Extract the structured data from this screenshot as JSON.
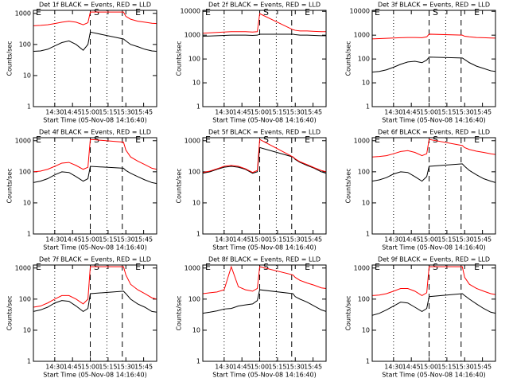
{
  "chart_data": [
    {
      "type": "line",
      "title": "Det 1f BLACK = Events, RED = LLD",
      "xlabel": "Start Time (05-Nov-08 14:16:40)",
      "ylabel": "Counts/sec",
      "x": [
        852,
        858,
        864,
        870,
        876,
        882,
        888,
        894,
        898,
        900,
        928,
        930,
        934,
        940,
        946,
        952,
        956
      ],
      "series": [
        {
          "color": "#000000",
          "values": [
            60,
            62,
            70,
            90,
            115,
            130,
            100,
            65,
            100,
            250,
            150,
            130,
            100,
            85,
            70,
            62,
            60
          ]
        },
        {
          "color": "#ff0000",
          "values": [
            400,
            410,
            430,
            470,
            520,
            560,
            520,
            430,
            500,
            1100,
            1100,
            800,
            650,
            560,
            520,
            480,
            470
          ]
        }
      ],
      "xlim": [
        852,
        956
      ],
      "xticks": [
        {
          "value": 870,
          "label": "14:30"
        },
        {
          "value": 885,
          "label": "14:45"
        },
        {
          "value": 900,
          "label": "15:00"
        },
        {
          "value": 915,
          "label": "15:15"
        },
        {
          "value": 930,
          "label": "15:30"
        },
        {
          "value": 945,
          "label": "15:45"
        }
      ],
      "ylim": [
        1,
        1250
      ],
      "yticks": [
        1,
        10,
        100,
        1000
      ],
      "ylog": true,
      "dotted_lines": [
        870,
        914
      ],
      "dashed_lines": [
        900,
        927
      ],
      "annotations": [
        {
          "text": "E",
          "x": 854
        },
        {
          "text": "S",
          "x": 903
        },
        {
          "text": "E",
          "x": 938
        }
      ]
    },
    {
      "type": "line",
      "title": "Det 2f BLACK = Events, RED = LLD",
      "xlabel": "Start Time (05-Nov-08 14:16:40)",
      "ylabel": "Counts/sec",
      "x": [
        852,
        858,
        864,
        870,
        876,
        882,
        888,
        894,
        898,
        900,
        928,
        930,
        934,
        940,
        946,
        952,
        956
      ],
      "series": [
        {
          "color": "#000000",
          "values": [
            900,
            920,
            950,
            980,
            1000,
            1000,
            1000,
            980,
            1000,
            1100,
            1100,
            1050,
            1000,
            1000,
            980,
            950,
            950
          ]
        },
        {
          "color": "#ff0000",
          "values": [
            1200,
            1250,
            1300,
            1350,
            1400,
            1400,
            1400,
            1350,
            1400,
            8000,
            1700,
            1600,
            1500,
            1500,
            1450,
            1400,
            1400
          ]
        }
      ],
      "xlim": [
        852,
        956
      ],
      "xticks": [
        {
          "value": 870,
          "label": "14:30"
        },
        {
          "value": 885,
          "label": "14:45"
        },
        {
          "value": 900,
          "label": "15:00"
        },
        {
          "value": 915,
          "label": "15:15"
        },
        {
          "value": 930,
          "label": "15:30"
        },
        {
          "value": 945,
          "label": "15:45"
        }
      ],
      "ylim": [
        1,
        11000
      ],
      "yticks": [
        1,
        10,
        100,
        1000,
        10000
      ],
      "ylog": true,
      "dotted_lines": [
        870,
        914
      ],
      "dashed_lines": [
        900,
        927
      ],
      "annotations": [
        {
          "text": "E",
          "x": 854
        },
        {
          "text": "S",
          "x": 903
        },
        {
          "text": "E",
          "x": 938
        }
      ]
    },
    {
      "type": "line",
      "title": "Det 3f BLACK = Events, RED = LLD",
      "xlabel": "Start Time (05-Nov-08 14:16:40)",
      "ylabel": "Counts/sec",
      "x": [
        852,
        858,
        864,
        870,
        876,
        882,
        888,
        894,
        898,
        900,
        928,
        930,
        934,
        940,
        946,
        952,
        956
      ],
      "series": [
        {
          "color": "#000000",
          "values": [
            28,
            30,
            35,
            45,
            60,
            75,
            80,
            70,
            90,
            120,
            110,
            95,
            70,
            50,
            40,
            32,
            30
          ]
        },
        {
          "color": "#ff0000",
          "values": [
            700,
            720,
            740,
            760,
            780,
            800,
            800,
            780,
            850,
            1100,
            1000,
            900,
            850,
            800,
            780,
            760,
            750
          ]
        }
      ],
      "xlim": [
        852,
        956
      ],
      "xticks": [
        {
          "value": 870,
          "label": "14:30"
        },
        {
          "value": 885,
          "label": "14:45"
        },
        {
          "value": 900,
          "label": "15:00"
        },
        {
          "value": 915,
          "label": "15:15"
        },
        {
          "value": 930,
          "label": "15:30"
        },
        {
          "value": 945,
          "label": "15:45"
        }
      ],
      "ylim": [
        1,
        11000
      ],
      "yticks": [
        1,
        10,
        100,
        1000,
        10000
      ],
      "ylog": true,
      "dotted_lines": [
        870,
        914
      ],
      "dashed_lines": [
        900,
        927
      ],
      "annotations": [
        {
          "text": "E",
          "x": 854
        },
        {
          "text": "S",
          "x": 903
        },
        {
          "text": "E",
          "x": 938
        }
      ]
    },
    {
      "type": "line",
      "title": "Det 4f BLACK = Events, RED = LLD",
      "xlabel": "Start Time (05-Nov-08 14:16:40)",
      "ylabel": "Counts/sec",
      "x": [
        852,
        858,
        864,
        870,
        876,
        882,
        888,
        894,
        898,
        900,
        928,
        930,
        934,
        940,
        946,
        952,
        956
      ],
      "series": [
        {
          "color": "#000000",
          "values": [
            45,
            50,
            60,
            80,
            100,
            95,
            70,
            50,
            60,
            150,
            130,
            110,
            90,
            70,
            55,
            45,
            42
          ]
        },
        {
          "color": "#ff0000",
          "values": [
            100,
            105,
            120,
            150,
            190,
            200,
            160,
            120,
            140,
            1100,
            900,
            500,
            300,
            220,
            170,
            130,
            120
          ]
        }
      ],
      "xlim": [
        852,
        956
      ],
      "xticks": [
        {
          "value": 870,
          "label": "14:30"
        },
        {
          "value": 885,
          "label": "14:45"
        },
        {
          "value": 900,
          "label": "15:00"
        },
        {
          "value": 915,
          "label": "15:15"
        },
        {
          "value": 930,
          "label": "15:30"
        },
        {
          "value": 945,
          "label": "15:45"
        }
      ],
      "ylim": [
        1,
        1250
      ],
      "yticks": [
        1,
        10,
        100,
        1000
      ],
      "ylog": true,
      "dotted_lines": [
        870,
        914
      ],
      "dashed_lines": [
        900,
        927
      ],
      "annotations": [
        {
          "text": "E",
          "x": 854
        },
        {
          "text": "S",
          "x": 903
        },
        {
          "text": "E",
          "x": 938
        }
      ]
    },
    {
      "type": "line",
      "title": "Det 5f BLACK = Events, RED = LLD",
      "xlabel": "Start Time (05-Nov-08 14:16:40)",
      "ylabel": "Counts/sec",
      "x": [
        852,
        858,
        864,
        870,
        876,
        882,
        888,
        894,
        898,
        900,
        928,
        930,
        934,
        940,
        946,
        952,
        956
      ],
      "series": [
        {
          "color": "#000000",
          "values": [
            90,
            100,
            120,
            140,
            150,
            140,
            120,
            90,
            100,
            600,
            300,
            250,
            200,
            160,
            130,
            100,
            90
          ]
        },
        {
          "color": "#ff0000",
          "values": [
            95,
            105,
            125,
            150,
            160,
            150,
            125,
            95,
            110,
            1100,
            300,
            260,
            210,
            170,
            135,
            110,
            100
          ]
        }
      ],
      "xlim": [
        852,
        956
      ],
      "xticks": [
        {
          "value": 870,
          "label": "14:30"
        },
        {
          "value": 885,
          "label": "14:45"
        },
        {
          "value": 900,
          "label": "15:00"
        },
        {
          "value": 915,
          "label": "15:15"
        },
        {
          "value": 930,
          "label": "15:30"
        },
        {
          "value": 945,
          "label": "15:45"
        }
      ],
      "ylim": [
        1,
        1250
      ],
      "yticks": [
        1,
        10,
        100,
        1000
      ],
      "ylog": true,
      "dotted_lines": [
        870,
        914
      ],
      "dashed_lines": [
        900,
        927
      ],
      "annotations": [
        {
          "text": "E",
          "x": 854
        },
        {
          "text": "S",
          "x": 903
        },
        {
          "text": "E",
          "x": 938
        }
      ]
    },
    {
      "type": "line",
      "title": "Det 6f BLACK = Events, RED = LLD",
      "xlabel": "Start Time (05-Nov-08 14:16:40)",
      "ylabel": "Counts/sec",
      "x": [
        852,
        858,
        864,
        870,
        876,
        882,
        888,
        894,
        898,
        900,
        928,
        930,
        934,
        940,
        946,
        952,
        956
      ],
      "series": [
        {
          "color": "#000000",
          "values": [
            50,
            55,
            65,
            85,
            100,
            95,
            70,
            50,
            70,
            150,
            180,
            150,
            110,
            80,
            60,
            50,
            45
          ]
        },
        {
          "color": "#ff0000",
          "values": [
            300,
            310,
            330,
            380,
            450,
            480,
            420,
            330,
            380,
            1100,
            700,
            600,
            520,
            460,
            420,
            380,
            360
          ]
        }
      ],
      "xlim": [
        852,
        956
      ],
      "xticks": [
        {
          "value": 870,
          "label": "14:30"
        },
        {
          "value": 885,
          "label": "14:45"
        },
        {
          "value": 900,
          "label": "15:00"
        },
        {
          "value": 915,
          "label": "15:15"
        },
        {
          "value": 930,
          "label": "15:30"
        },
        {
          "value": 945,
          "label": "15:45"
        }
      ],
      "ylim": [
        1,
        1250
      ],
      "yticks": [
        1,
        10,
        100,
        1000
      ],
      "ylog": true,
      "dotted_lines": [
        870,
        914
      ],
      "dashed_lines": [
        900,
        927
      ],
      "annotations": [
        {
          "text": "E",
          "x": 854
        },
        {
          "text": "S",
          "x": 903
        },
        {
          "text": "E",
          "x": 938
        }
      ]
    },
    {
      "type": "line",
      "title": "Det 7f BLACK = Events, RED = LLD",
      "xlabel": "Start Time (05-Nov-08 14:16:40)",
      "ylabel": "Counts/sec",
      "x": [
        852,
        858,
        864,
        870,
        876,
        882,
        888,
        894,
        898,
        900,
        928,
        930,
        934,
        940,
        946,
        952,
        956
      ],
      "series": [
        {
          "color": "#000000",
          "values": [
            40,
            45,
            55,
            75,
            90,
            85,
            60,
            40,
            50,
            150,
            180,
            150,
            100,
            70,
            55,
            40,
            38
          ]
        },
        {
          "color": "#ff0000",
          "values": [
            55,
            60,
            75,
            100,
            130,
            130,
            100,
            70,
            100,
            1100,
            1100,
            600,
            300,
            200,
            150,
            110,
            100
          ]
        }
      ],
      "xlim": [
        852,
        956
      ],
      "xticks": [
        {
          "value": 870,
          "label": "14:30"
        },
        {
          "value": 885,
          "label": "14:45"
        },
        {
          "value": 900,
          "label": "15:00"
        },
        {
          "value": 915,
          "label": "15:15"
        },
        {
          "value": 930,
          "label": "15:30"
        },
        {
          "value": 945,
          "label": "15:45"
        }
      ],
      "ylim": [
        1,
        1250
      ],
      "yticks": [
        1,
        10,
        100,
        1000
      ],
      "ylog": true,
      "dotted_lines": [
        870,
        914
      ],
      "dashed_lines": [
        900,
        927
      ],
      "annotations": [
        {
          "text": "E",
          "x": 854
        },
        {
          "text": "S",
          "x": 903
        },
        {
          "text": "E",
          "x": 938
        }
      ]
    },
    {
      "type": "line",
      "title": "Det 8f BLACK = Events, RED = LLD",
      "xlabel": "Start Time (05-Nov-08 14:16:40)",
      "ylabel": "Counts/sec",
      "x": [
        852,
        858,
        864,
        870,
        876,
        882,
        888,
        894,
        898,
        900,
        928,
        930,
        934,
        940,
        946,
        952,
        956
      ],
      "series": [
        {
          "color": "#000000",
          "values": [
            35,
            38,
            42,
            48,
            50,
            60,
            65,
            70,
            90,
            200,
            150,
            120,
            100,
            80,
            60,
            45,
            40
          ]
        },
        {
          "color": "#ff0000",
          "values": [
            150,
            160,
            170,
            200,
            1100,
            250,
            200,
            180,
            220,
            1100,
            600,
            500,
            400,
            330,
            280,
            230,
            220
          ]
        }
      ],
      "xlim": [
        852,
        956
      ],
      "xticks": [
        {
          "value": 870,
          "label": "14:30"
        },
        {
          "value": 885,
          "label": "14:45"
        },
        {
          "value": 900,
          "label": "15:00"
        },
        {
          "value": 915,
          "label": "15:15"
        },
        {
          "value": 930,
          "label": "15:30"
        },
        {
          "value": 945,
          "label": "15:45"
        }
      ],
      "ylim": [
        1,
        1250
      ],
      "yticks": [
        1,
        10,
        100,
        1000
      ],
      "ylog": true,
      "dotted_lines": [
        870,
        914
      ],
      "dashed_lines": [
        900,
        927
      ],
      "annotations": [
        {
          "text": "E",
          "x": 854
        },
        {
          "text": "S",
          "x": 903
        },
        {
          "text": "E",
          "x": 938
        }
      ]
    },
    {
      "type": "line",
      "title": "Det 9f BLACK = Events, RED = LLD",
      "xlabel": "Start Time (05-Nov-08 14:16:40)",
      "ylabel": "Counts/sec",
      "x": [
        852,
        858,
        864,
        870,
        876,
        882,
        888,
        894,
        898,
        900,
        928,
        930,
        934,
        940,
        946,
        952,
        956
      ],
      "series": [
        {
          "color": "#000000",
          "values": [
            30,
            35,
            45,
            60,
            80,
            75,
            55,
            40,
            50,
            120,
            150,
            130,
            100,
            70,
            50,
            38,
            35
          ]
        },
        {
          "color": "#ff0000",
          "values": [
            130,
            135,
            150,
            180,
            220,
            220,
            180,
            130,
            160,
            1100,
            1100,
            500,
            300,
            220,
            180,
            150,
            140
          ]
        }
      ],
      "xlim": [
        852,
        956
      ],
      "xticks": [
        {
          "value": 870,
          "label": "14:30"
        },
        {
          "value": 885,
          "label": "14:45"
        },
        {
          "value": 900,
          "label": "15:00"
        },
        {
          "value": 915,
          "label": "15:15"
        },
        {
          "value": 930,
          "label": "15:30"
        },
        {
          "value": 945,
          "label": "15:45"
        }
      ],
      "ylim": [
        1,
        1250
      ],
      "yticks": [
        1,
        10,
        100,
        1000
      ],
      "ylog": true,
      "dotted_lines": [
        870,
        914
      ],
      "dashed_lines": [
        900,
        927
      ],
      "annotations": [
        {
          "text": "E",
          "x": 854
        },
        {
          "text": "S",
          "x": 903
        },
        {
          "text": "E",
          "x": 938
        }
      ]
    }
  ]
}
